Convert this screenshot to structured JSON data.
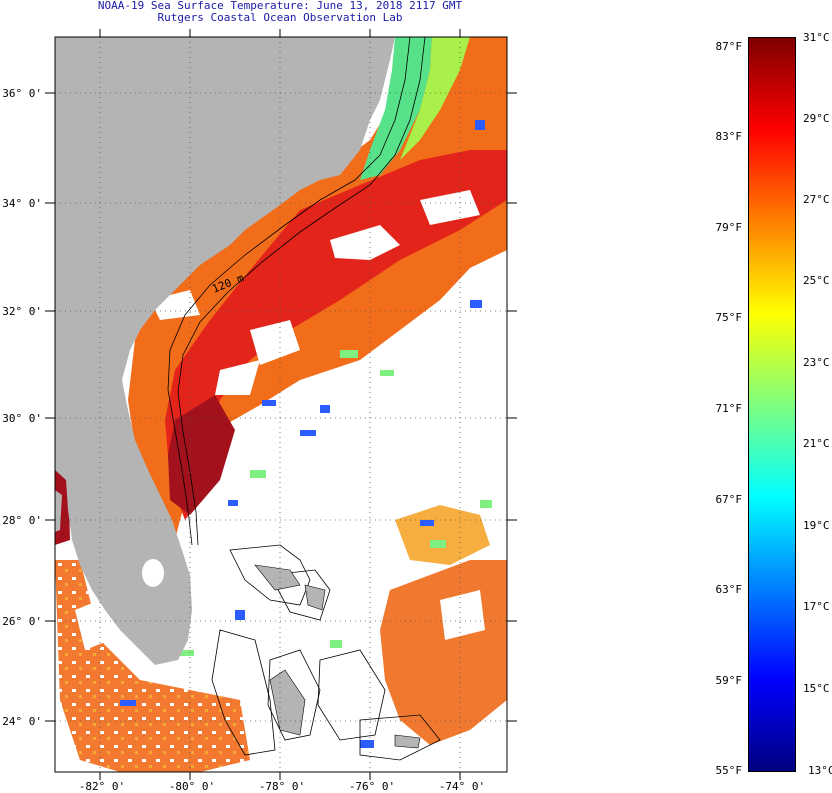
{
  "header": {
    "title_line1": "NOAA-19 Sea Surface Temperature:  June 13, 2018 2117 GMT",
    "title_line2": "Rutgers Coastal Ocean Observation Lab"
  },
  "map": {
    "lat_labels": [
      "36° 0'",
      "34° 0'",
      "32° 0'",
      "30° 0'",
      "28° 0'",
      "26° 0'",
      "24° 0'"
    ],
    "lon_labels": [
      "-82° 0'",
      "-80° 0'",
      "-78° 0'",
      "-76° 0'",
      "-74° 0'"
    ],
    "isobath_label": "120 m",
    "colors": {
      "land": "#b4b4b4",
      "cloud": "#ffffff",
      "warm_core": "#a0101a",
      "gulf_stream": "#e03010",
      "shelf_water": "#f06a18"
    }
  },
  "colorbar": {
    "fahrenheit_labels": [
      "87°F",
      "83°F",
      "79°F",
      "75°F",
      "71°F",
      "67°F",
      "63°F",
      "59°F",
      "55°F"
    ],
    "celsius_labels": [
      "31°C",
      "29°C",
      "27°C",
      "25°C",
      "23°C",
      "21°C",
      "19°C",
      "17°C",
      "15°C",
      "13°C"
    ],
    "range_celsius": [
      13,
      31
    ],
    "range_fahrenheit": [
      55,
      87
    ],
    "palette": [
      "#00007f",
      "#0000ff",
      "#007fff",
      "#00ffff",
      "#7fff7f",
      "#ffff00",
      "#ff7f00",
      "#ff0000",
      "#7f0000"
    ]
  }
}
